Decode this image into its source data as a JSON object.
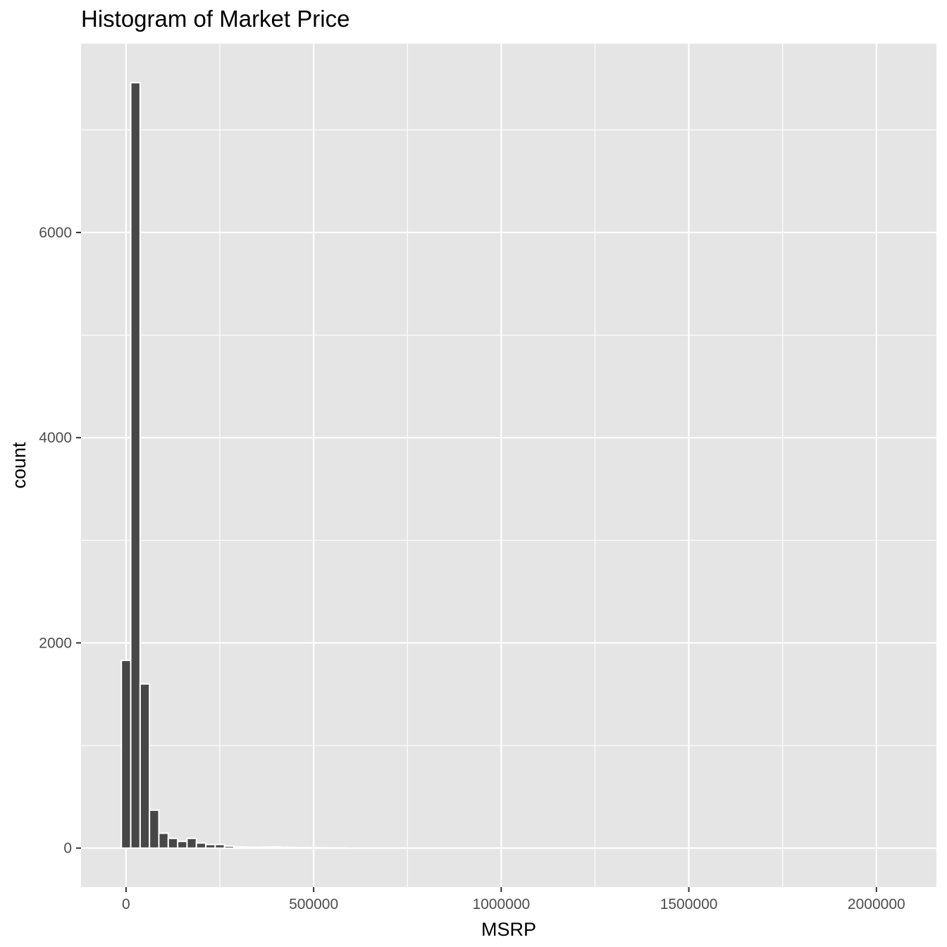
{
  "chart_data": {
    "type": "bar",
    "title": "Histogram of Market Price",
    "xlabel": "MSRP",
    "ylabel": "count",
    "bin_width": 25000,
    "bins_x_center": [
      0,
      25000,
      50000,
      75000,
      100000,
      125000,
      150000,
      175000,
      200000,
      225000,
      250000,
      275000,
      300000,
      325000,
      350000,
      375000,
      400000,
      425000,
      450000,
      475000,
      500000,
      525000,
      550000,
      575000
    ],
    "values": [
      1830,
      7460,
      1600,
      370,
      145,
      95,
      65,
      95,
      50,
      35,
      35,
      20,
      12,
      10,
      8,
      10,
      12,
      8,
      6,
      5,
      4,
      3,
      2,
      2
    ],
    "xlim": [
      -120000,
      2160000
    ],
    "ylim": [
      -380,
      7840
    ],
    "x_ticks": [
      0,
      500000,
      1000000,
      1500000,
      2000000
    ],
    "x_tick_labels": [
      "0",
      "500000",
      "1000000",
      "1500000",
      "2000000"
    ],
    "y_ticks": [
      0,
      2000,
      4000,
      6000
    ],
    "y_tick_labels": [
      "0",
      "2000",
      "4000",
      "6000"
    ],
    "x_minor_gridlines": [
      250000,
      750000,
      1250000,
      1750000
    ],
    "y_minor_gridlines": [
      1000,
      3000,
      5000,
      7000
    ],
    "grid": true,
    "colors": {
      "panel_background": "#e5e5e5",
      "grid": "#ffffff",
      "bar_fill": "#474747",
      "bar_outline": "#ffffff",
      "tick_text": "#4d4d4d",
      "tick_mark": "#333333"
    }
  }
}
